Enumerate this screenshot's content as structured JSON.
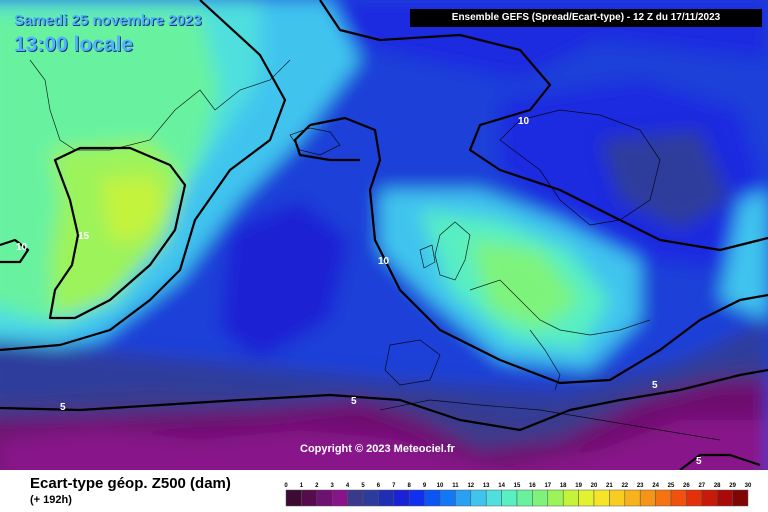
{
  "header": {
    "date_label": "Samedi 25 novembre 2023",
    "time_label": "13:00 locale",
    "model_label": "Ensemble GEFS  (Spread/Ecart-type) - 12 Z du 17/11/2023"
  },
  "copyright": "Copyright © 2023 Meteociel.fr",
  "footer": {
    "title": "Ecart-type géop. Z500 (dam)",
    "subtitle": "(+ 192h)"
  },
  "contour_labels": [
    "15",
    "10",
    "10",
    "10",
    "5",
    "5",
    "5",
    "5"
  ],
  "legend": {
    "ticks": [
      "0",
      "1",
      "2",
      "3",
      "4",
      "5",
      "6",
      "7",
      "8",
      "9",
      "10",
      "11",
      "12",
      "13",
      "14",
      "15",
      "16",
      "17",
      "18",
      "19",
      "20",
      "21",
      "22",
      "23",
      "24",
      "25",
      "26",
      "27",
      "28",
      "29",
      "30"
    ],
    "colors": [
      "#3d0a33",
      "#560b4e",
      "#6e1170",
      "#88138a",
      "#3a3a8c",
      "#2d3c9c",
      "#1f2fb5",
      "#1b21d4",
      "#1030ee",
      "#0a55f5",
      "#1477f5",
      "#2aa0f3",
      "#3fc4ee",
      "#4fdfde",
      "#58efc2",
      "#68f2a0",
      "#7ef37c",
      "#9cf35a",
      "#c4f33c",
      "#e2f230",
      "#f5e428",
      "#f7cd22",
      "#f7b21c",
      "#f69418",
      "#f47412",
      "#ee520d",
      "#e3320a",
      "#c81a08",
      "#a80a0a",
      "#800606"
    ]
  }
}
